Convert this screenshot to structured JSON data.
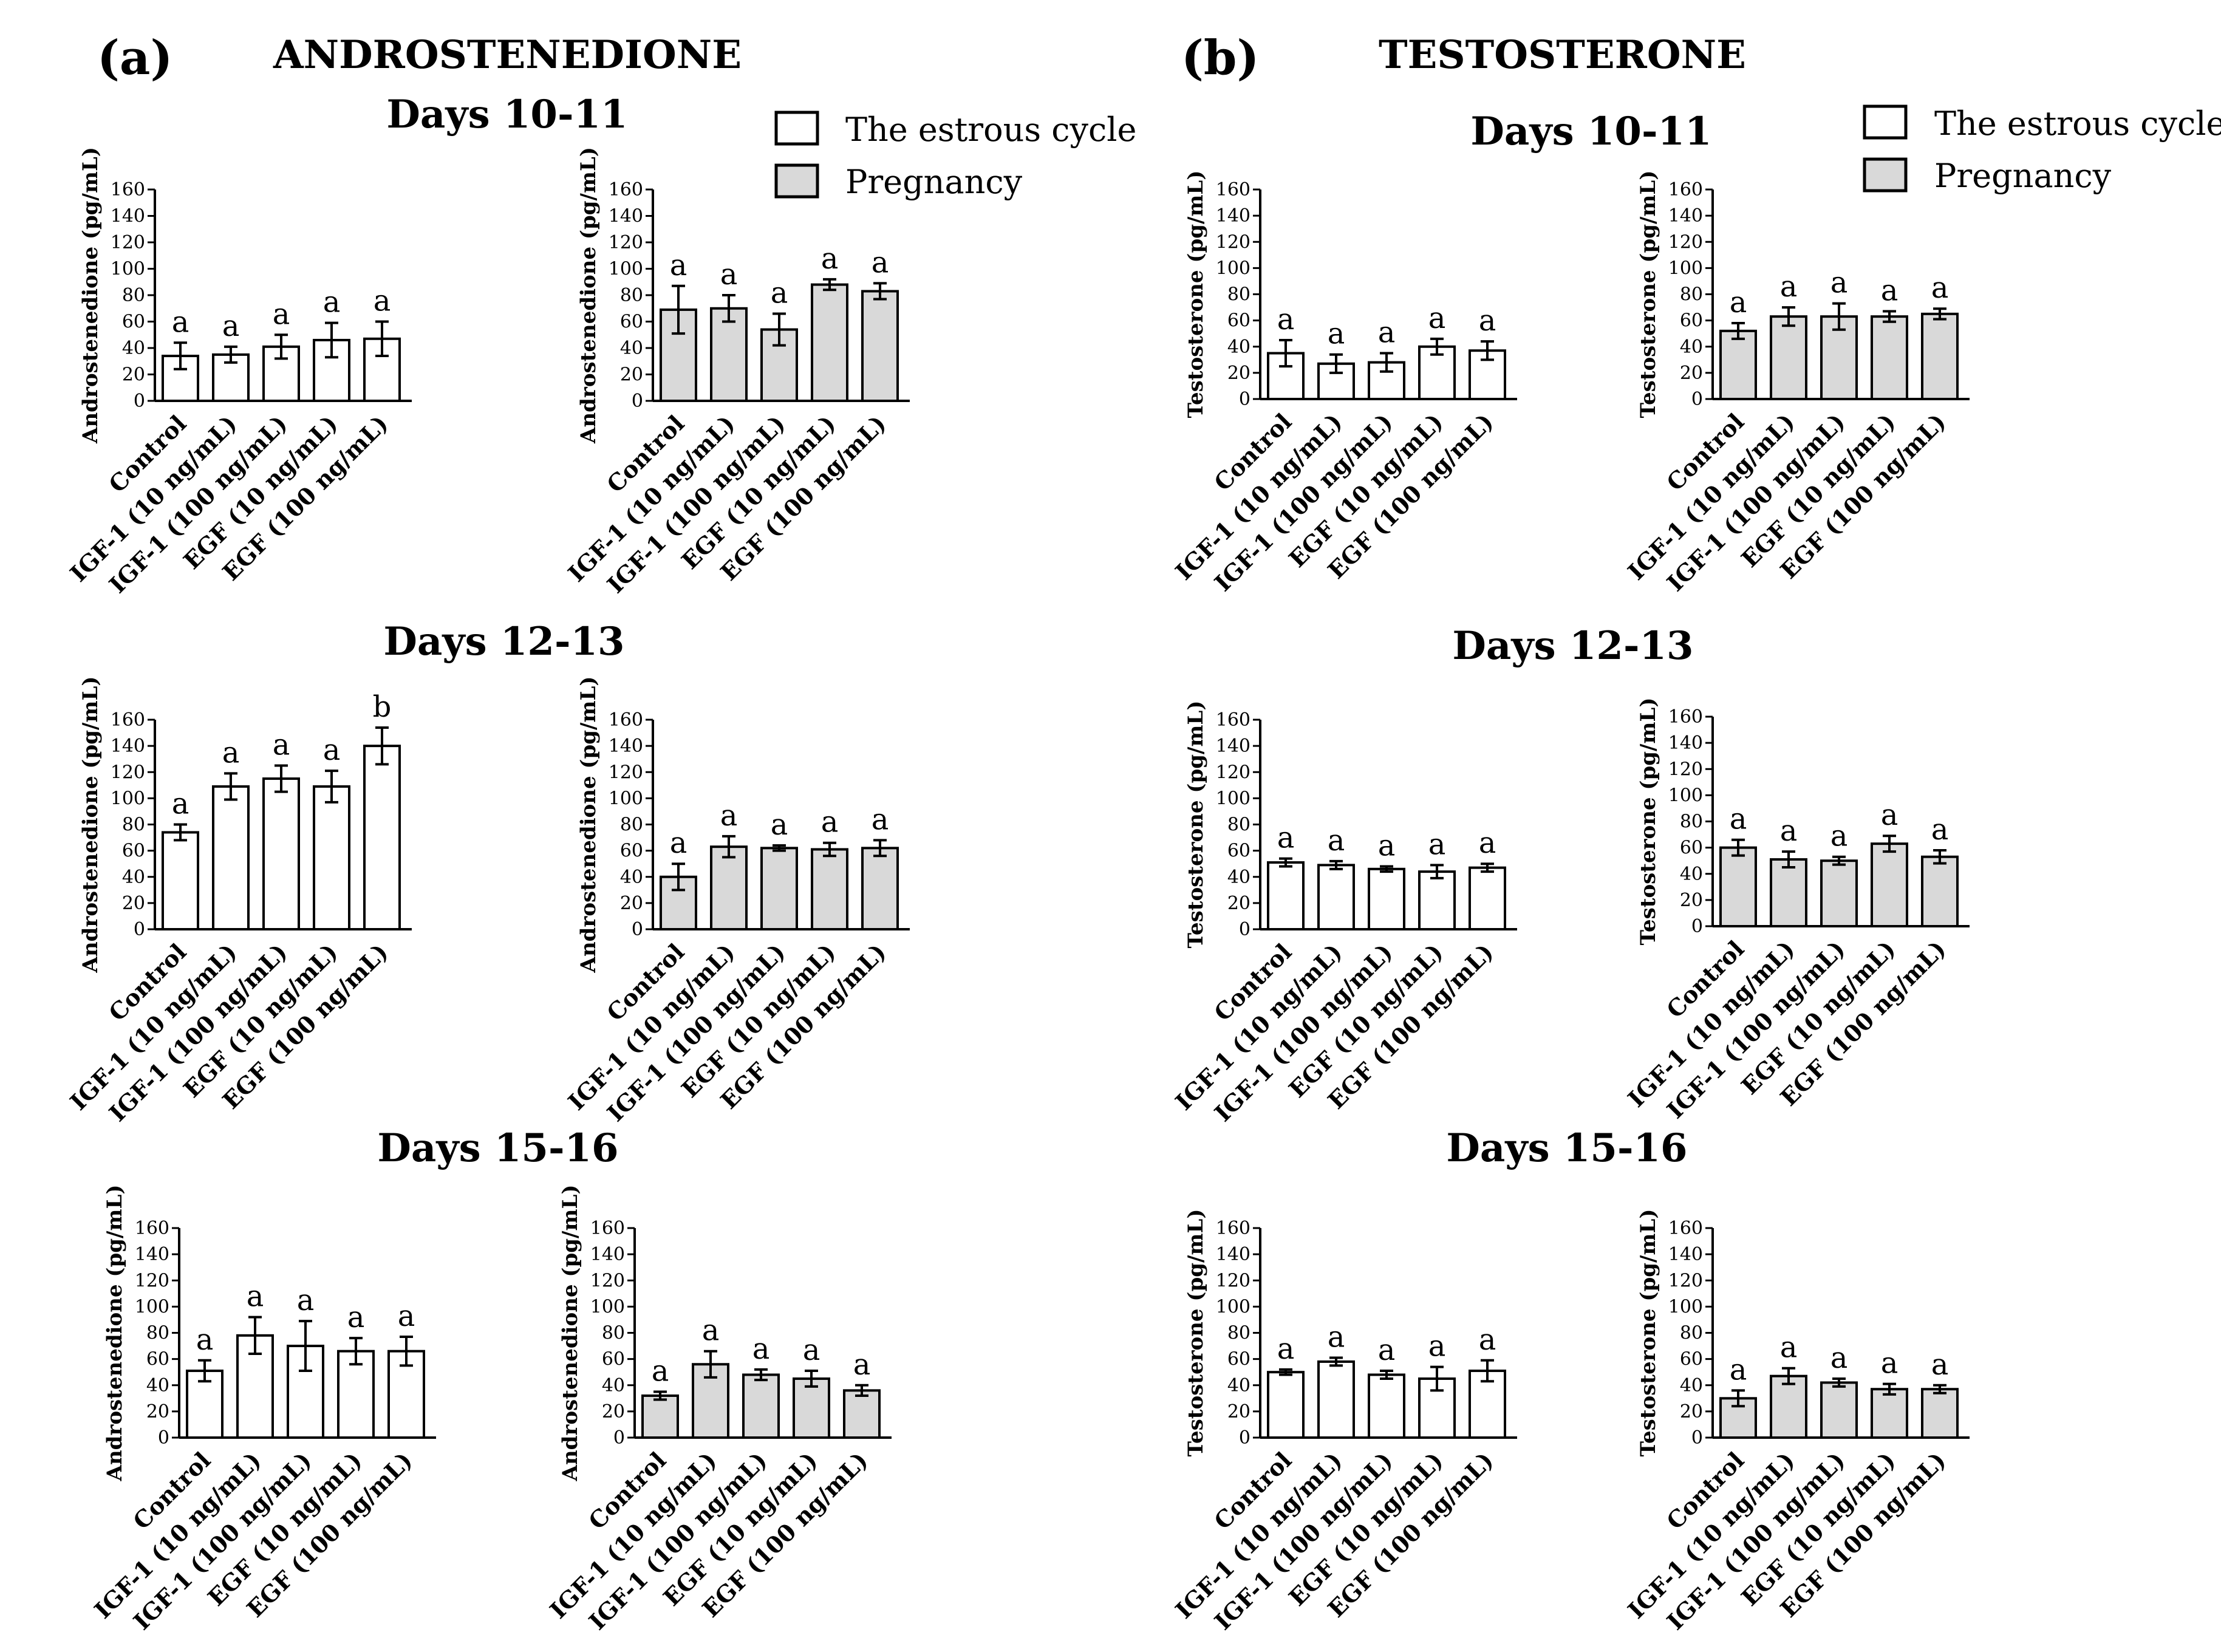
{
  "panel_a": {
    "letter": "(a)",
    "title": "ANDROSTENEDIONE",
    "ylabel": "Androstenedione (pg/mL)",
    "legend": {
      "estrous": "The estrous cycle",
      "pregnancy": "Pregnancy"
    },
    "row_titles": [
      "Days 10-11",
      "Days 12-13",
      "Days 15-16"
    ]
  },
  "panel_b": {
    "letter": "(b)",
    "title": "TESTOSTERONE",
    "ylabel": "Testosterone (pg/mL)",
    "legend": {
      "estrous": "The estrous cycle",
      "pregnancy": "Pregnancy"
    },
    "row_titles": [
      "Days 10-11",
      "Days 12-13",
      "Days 15-16"
    ]
  },
  "colors": {
    "estrous_fill": "#ffffff",
    "pregnancy_fill": "#d9d9d9",
    "stroke": "#000000"
  },
  "chart_data": [
    {
      "id": "A1E",
      "type": "bar",
      "panel": "a",
      "row": "Days 10-11",
      "series": "The estrous cycle",
      "ylabel": "Androstenedione (pg/mL)",
      "ylim": [
        0,
        160
      ],
      "yticks": [
        0,
        20,
        40,
        60,
        80,
        100,
        120,
        140,
        160
      ],
      "categories": [
        "Control",
        "IGF-1 (10 ng/mL)",
        "IGF-1 (100 ng/mL)",
        "EGF (10 ng/mL)",
        "EGF (100 ng/mL)"
      ],
      "values": [
        34,
        35,
        41,
        46,
        47
      ],
      "errors": [
        10,
        6,
        9,
        13,
        13
      ],
      "labels": [
        "a",
        "a",
        "a",
        "a",
        "a"
      ]
    },
    {
      "id": "A1P",
      "type": "bar",
      "panel": "a",
      "row": "Days 10-11",
      "series": "Pregnancy",
      "ylabel": "Androstenedione (pg/mL)",
      "ylim": [
        0,
        160
      ],
      "yticks": [
        0,
        20,
        40,
        60,
        80,
        100,
        120,
        140,
        160
      ],
      "categories": [
        "Control",
        "IGF-1 (10 ng/mL)",
        "IGF-1 (100 ng/mL)",
        "EGF (10 ng/mL)",
        "EGF (100 ng/mL)"
      ],
      "values": [
        69,
        70,
        54,
        88,
        83
      ],
      "errors": [
        18,
        10,
        12,
        4,
        6
      ],
      "labels": [
        "a",
        "a",
        "a",
        "a",
        "a"
      ]
    },
    {
      "id": "A2E",
      "type": "bar",
      "panel": "a",
      "row": "Days 12-13",
      "series": "The estrous cycle",
      "ylabel": "Androstenedione (pg/mL)",
      "ylim": [
        0,
        160
      ],
      "yticks": [
        0,
        20,
        40,
        60,
        80,
        100,
        120,
        140,
        160
      ],
      "categories": [
        "Control",
        "IGF-1 (10 ng/mL)",
        "IGF-1 (100 ng/mL)",
        "EGF (10 ng/mL)",
        "EGF (100 ng/mL)"
      ],
      "values": [
        74,
        109,
        115,
        109,
        140
      ],
      "errors": [
        6,
        10,
        10,
        12,
        14
      ],
      "labels": [
        "a",
        "a",
        "a",
        "a",
        "b"
      ]
    },
    {
      "id": "A2P",
      "type": "bar",
      "panel": "a",
      "row": "Days 12-13",
      "series": "Pregnancy",
      "ylabel": "Androstenedione (pg/mL)",
      "ylim": [
        0,
        160
      ],
      "yticks": [
        0,
        20,
        40,
        60,
        80,
        100,
        120,
        140,
        160
      ],
      "categories": [
        "Control",
        "IGF-1 (10 ng/mL)",
        "IGF-1 (100 ng/mL)",
        "EGF (10 ng/mL)",
        "EGF (100 ng/mL)"
      ],
      "values": [
        40,
        63,
        62,
        61,
        62
      ],
      "errors": [
        10,
        8,
        2,
        5,
        6
      ],
      "labels": [
        "a",
        "a",
        "a",
        "a",
        "a"
      ]
    },
    {
      "id": "A3E",
      "type": "bar",
      "panel": "a",
      "row": "Days 15-16",
      "series": "The estrous cycle",
      "ylabel": "Androstenedione (pg/mL)",
      "ylim": [
        0,
        160
      ],
      "yticks": [
        0,
        20,
        40,
        60,
        80,
        100,
        120,
        140,
        160
      ],
      "categories": [
        "Control",
        "IGF-1 (10 ng/mL)",
        "IGF-1 (100 ng/mL)",
        "EGF (10 ng/mL)",
        "EGF (100 ng/mL)"
      ],
      "values": [
        51,
        78,
        70,
        66,
        66
      ],
      "errors": [
        8,
        14,
        19,
        10,
        11
      ],
      "labels": [
        "a",
        "a",
        "a",
        "a",
        "a"
      ]
    },
    {
      "id": "A3P",
      "type": "bar",
      "panel": "a",
      "row": "Days 15-16",
      "series": "Pregnancy",
      "ylabel": "Androstenedione (pg/mL)",
      "ylim": [
        0,
        160
      ],
      "yticks": [
        0,
        20,
        40,
        60,
        80,
        100,
        120,
        140,
        160
      ],
      "categories": [
        "Control",
        "IGF-1 (10 ng/mL)",
        "IGF-1 (100 ng/mL)",
        "EGF (10 ng/mL)",
        "EGF (100 ng/mL)"
      ],
      "values": [
        32,
        56,
        48,
        45,
        36
      ],
      "errors": [
        3,
        10,
        4,
        6,
        4
      ],
      "labels": [
        "a",
        "a",
        "a",
        "a",
        "a"
      ]
    },
    {
      "id": "B1E",
      "type": "bar",
      "panel": "b",
      "row": "Days 10-11",
      "series": "The estrous cycle",
      "ylabel": "Testosterone (pg/mL)",
      "ylim": [
        0,
        160
      ],
      "yticks": [
        0,
        20,
        40,
        60,
        80,
        100,
        120,
        140,
        160
      ],
      "categories": [
        "Control",
        "IGF-1 (10 ng/mL)",
        "IGF-1 (100 ng/mL)",
        "EGF (10 ng/mL)",
        "EGF (100 ng/mL)"
      ],
      "values": [
        35,
        27,
        28,
        40,
        37
      ],
      "errors": [
        10,
        7,
        7,
        6,
        7
      ],
      "labels": [
        "a",
        "a",
        "a",
        "a",
        "a"
      ]
    },
    {
      "id": "B1P",
      "type": "bar",
      "panel": "b",
      "row": "Days 10-11",
      "series": "Pregnancy",
      "ylabel": "Testosterone (pg/mL)",
      "ylim": [
        0,
        160
      ],
      "yticks": [
        0,
        20,
        40,
        60,
        80,
        100,
        120,
        140,
        160
      ],
      "categories": [
        "Control",
        "IGF-1 (10 ng/mL)",
        "IGF-1 (100 ng/mL)",
        "EGF (10 ng/mL)",
        "EGF (100 ng/mL)"
      ],
      "values": [
        52,
        63,
        63,
        63,
        65
      ],
      "errors": [
        6,
        7,
        10,
        4,
        4
      ],
      "labels": [
        "a",
        "a",
        "a",
        "a",
        "a"
      ]
    },
    {
      "id": "B2E",
      "type": "bar",
      "panel": "b",
      "row": "Days 12-13",
      "series": "The estrous cycle",
      "ylabel": "Testosterone (pg/mL)",
      "ylim": [
        0,
        160
      ],
      "yticks": [
        0,
        20,
        40,
        60,
        80,
        100,
        120,
        140,
        160
      ],
      "categories": [
        "Control",
        "IGF-1 (10 ng/mL)",
        "IGF-1 (100 ng/mL)",
        "EGF (10 ng/mL)",
        "EGF (100 ng/mL)"
      ],
      "values": [
        51,
        49,
        46,
        44,
        47
      ],
      "errors": [
        3,
        3,
        2,
        5,
        3
      ],
      "labels": [
        "a",
        "a",
        "a",
        "a",
        "a"
      ]
    },
    {
      "id": "B2P",
      "type": "bar",
      "panel": "b",
      "row": "Days 12-13",
      "series": "Pregnancy",
      "ylabel": "Testosterone (pg/mL)",
      "ylim": [
        0,
        160
      ],
      "yticks": [
        0,
        20,
        40,
        60,
        80,
        100,
        120,
        140,
        160
      ],
      "categories": [
        "Control",
        "IGF-1 (10 ng/mL)",
        "IGF-1 (100 ng/mL)",
        "EGF (10 ng/mL)",
        "EGF (100 ng/mL)"
      ],
      "values": [
        60,
        51,
        50,
        63,
        53
      ],
      "errors": [
        6,
        6,
        3,
        6,
        5
      ],
      "labels": [
        "a",
        "a",
        "a",
        "a",
        "a"
      ]
    },
    {
      "id": "B3E",
      "type": "bar",
      "panel": "b",
      "row": "Days 15-16",
      "series": "The estrous cycle",
      "ylabel": "Testosterone (pg/mL)",
      "ylim": [
        0,
        160
      ],
      "yticks": [
        0,
        20,
        40,
        60,
        80,
        100,
        120,
        140,
        160
      ],
      "categories": [
        "Control",
        "IGF-1 (10 ng/mL)",
        "IGF-1 (100 ng/mL)",
        "EGF (10 ng/mL)",
        "EGF (100 ng/mL)"
      ],
      "values": [
        50,
        58,
        48,
        45,
        51
      ],
      "errors": [
        2,
        3,
        3,
        9,
        8
      ],
      "labels": [
        "a",
        "a",
        "a",
        "a",
        "a"
      ]
    },
    {
      "id": "B3P",
      "type": "bar",
      "panel": "b",
      "row": "Days 15-16",
      "series": "Pregnancy",
      "ylabel": "Testosterone (pg/mL)",
      "ylim": [
        0,
        160
      ],
      "yticks": [
        0,
        20,
        40,
        60,
        80,
        100,
        120,
        140,
        160
      ],
      "categories": [
        "Control",
        "IGF-1 (10 ng/mL)",
        "IGF-1 (100 ng/mL)",
        "EGF (10 ng/mL)",
        "EGF (100 ng/mL)"
      ],
      "values": [
        30,
        47,
        42,
        37,
        37
      ],
      "errors": [
        6,
        6,
        3,
        4,
        3
      ],
      "labels": [
        "a",
        "a",
        "a",
        "a",
        "a"
      ]
    }
  ]
}
